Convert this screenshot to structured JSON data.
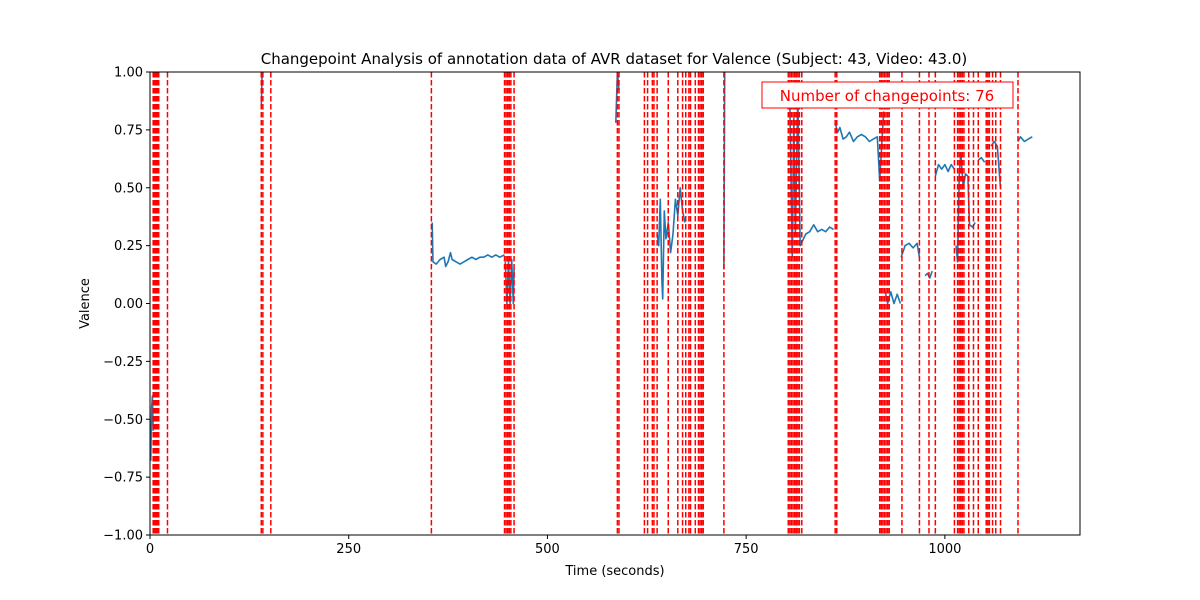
{
  "chart_data": {
    "type": "line",
    "title": "Changepoint Analysis of annotation data of AVR dataset for Valence (Subject: 43, Video: 43.0)",
    "xlabel": "Time (seconds)",
    "ylabel": "Valence",
    "xlim": [
      0,
      1170
    ],
    "ylim": [
      -1.0,
      1.0
    ],
    "x_ticks": [
      0,
      250,
      500,
      750,
      1000
    ],
    "y_ticks": [
      -1.0,
      -0.75,
      -0.5,
      -0.25,
      0.0,
      0.25,
      0.5,
      0.75,
      1.0
    ],
    "x_tick_labels": [
      "0",
      "250",
      "500",
      "750",
      "1000"
    ],
    "y_tick_labels": [
      "−1.00",
      "−0.75",
      "−0.50",
      "−0.25",
      "0.00",
      "0.25",
      "0.50",
      "0.75",
      "1.00"
    ],
    "grid": false,
    "annotation": "Number of changepoints: 76",
    "colors": {
      "series": "#1f77b4",
      "changepoint": "#ff0000",
      "annotation": "#ff0000"
    },
    "series": [
      {
        "segments": [
          [
            [
              1,
              -0.68
            ],
            [
              2,
              -0.45
            ],
            [
              3,
              -0.4
            ],
            [
              4,
              -0.55
            ]
          ],
          [
            [
              140,
              0.85
            ],
            [
              141,
              1.0
            ]
          ],
          [
            [
              355,
              0.35
            ],
            [
              356,
              0.18
            ],
            [
              360,
              0.17
            ],
            [
              365,
              0.19
            ],
            [
              370,
              0.2
            ],
            [
              372,
              0.16
            ],
            [
              375,
              0.18
            ],
            [
              378,
              0.22
            ],
            [
              380,
              0.19
            ],
            [
              385,
              0.18
            ],
            [
              390,
              0.17
            ],
            [
              395,
              0.18
            ],
            [
              400,
              0.19
            ],
            [
              405,
              0.2
            ],
            [
              410,
              0.19
            ],
            [
              415,
              0.2
            ],
            [
              420,
              0.2
            ],
            [
              425,
              0.21
            ],
            [
              430,
              0.2
            ],
            [
              435,
              0.21
            ],
            [
              440,
              0.2
            ],
            [
              446,
              0.21
            ]
          ],
          [
            [
              447,
              0.18
            ],
            [
              449,
              0.0
            ],
            [
              451,
              0.18
            ],
            [
              453,
              0.0
            ],
            [
              455,
              0.19
            ],
            [
              457,
              0.0
            ],
            [
              458,
              0.15
            ]
          ],
          [
            [
              586,
              0.78
            ],
            [
              588,
              1.0
            ],
            [
              590,
              0.92
            ]
          ],
          [
            [
              638,
              0.3
            ],
            [
              640,
              0.25
            ],
            [
              642,
              0.45
            ],
            [
              644,
              0.1
            ],
            [
              645,
              0.02
            ],
            [
              647,
              0.4
            ],
            [
              649,
              0.28
            ],
            [
              652,
              0.35
            ],
            [
              655,
              0.22
            ],
            [
              658,
              0.3
            ],
            [
              661,
              0.45
            ],
            [
              664,
              0.38
            ],
            [
              667,
              0.5
            ],
            [
              670,
              0.4
            ],
            [
              673,
              0.35
            ]
          ],
          [
            [
              722,
              0.15
            ],
            [
              723,
              1.0
            ]
          ],
          [
            [
              805,
              0.85
            ],
            [
              808,
              0.2
            ],
            [
              810,
              0.8
            ],
            [
              812,
              0.3
            ],
            [
              815,
              0.9
            ],
            [
              818,
              0.25
            ],
            [
              825,
              0.3
            ],
            [
              830,
              0.31
            ],
            [
              835,
              0.34
            ],
            [
              840,
              0.31
            ],
            [
              845,
              0.32
            ],
            [
              850,
              0.31
            ],
            [
              855,
              0.33
            ],
            [
              860,
              0.32
            ]
          ],
          [
            [
              862,
              0.78
            ],
            [
              865,
              0.74
            ],
            [
              868,
              0.76
            ],
            [
              872,
              0.71
            ],
            [
              876,
              0.72
            ],
            [
              880,
              0.74
            ],
            [
              885,
              0.7
            ],
            [
              890,
              0.72
            ],
            [
              895,
              0.73
            ],
            [
              900,
              0.72
            ],
            [
              905,
              0.7
            ],
            [
              910,
              0.71
            ],
            [
              915,
              0.72
            ],
            [
              918,
              0.53
            ],
            [
              920,
              0.65
            ],
            [
              923,
              0.83
            ]
          ],
          [
            [
              925,
              0.05
            ],
            [
              928,
              0.0
            ],
            [
              932,
              0.05
            ],
            [
              936,
              0.0
            ],
            [
              940,
              0.04
            ],
            [
              944,
              0.0
            ]
          ],
          [
            [
              945,
              0.2
            ],
            [
              950,
              0.25
            ],
            [
              955,
              0.26
            ],
            [
              960,
              0.24
            ],
            [
              965,
              0.26
            ],
            [
              968,
              0.2
            ]
          ],
          [
            [
              975,
              0.12
            ],
            [
              978,
              0.13
            ],
            [
              981,
              0.11
            ],
            [
              984,
              0.14
            ]
          ],
          [
            [
              988,
              0.55
            ],
            [
              992,
              0.6
            ],
            [
              996,
              0.58
            ],
            [
              1000,
              0.6
            ],
            [
              1004,
              0.57
            ],
            [
              1008,
              0.6
            ],
            [
              1012,
              0.58
            ]
          ],
          [
            [
              1014,
              0.25
            ],
            [
              1016,
              0.18
            ],
            [
              1018,
              0.55
            ],
            [
              1020,
              0.65
            ],
            [
              1023,
              0.5
            ],
            [
              1026,
              0.56
            ],
            [
              1029,
              0.55
            ],
            [
              1031,
              0.34
            ],
            [
              1035,
              0.33
            ],
            [
              1038,
              0.35
            ]
          ],
          [
            [
              1042,
              0.62
            ],
            [
              1046,
              0.63
            ],
            [
              1050,
              0.61
            ]
          ],
          [
            [
              1058,
              0.68
            ],
            [
              1062,
              0.7
            ],
            [
              1066,
              0.68
            ],
            [
              1070,
              0.5
            ]
          ],
          [
            [
              1092,
              0.7
            ],
            [
              1095,
              0.72
            ],
            [
              1100,
              0.7
            ],
            [
              1105,
              0.71
            ],
            [
              1110,
              0.72
            ]
          ]
        ]
      }
    ],
    "changepoints": [
      4,
      5,
      6,
      7,
      8,
      9,
      10,
      11,
      22,
      140,
      142,
      152,
      354,
      446,
      448,
      450,
      452,
      454,
      458,
      588,
      590,
      622,
      626,
      632,
      634,
      638,
      652,
      664,
      670,
      674,
      678,
      680,
      686,
      690,
      692,
      694,
      696,
      722,
      803,
      805,
      807,
      809,
      811,
      813,
      815,
      817,
      820,
      862,
      864,
      918,
      920,
      922,
      924,
      926,
      928,
      930,
      946,
      968,
      980,
      988,
      1012,
      1016,
      1018,
      1020,
      1022,
      1024,
      1030,
      1036,
      1042,
      1052,
      1054,
      1056,
      1060,
      1064,
      1070,
      1092
    ]
  }
}
